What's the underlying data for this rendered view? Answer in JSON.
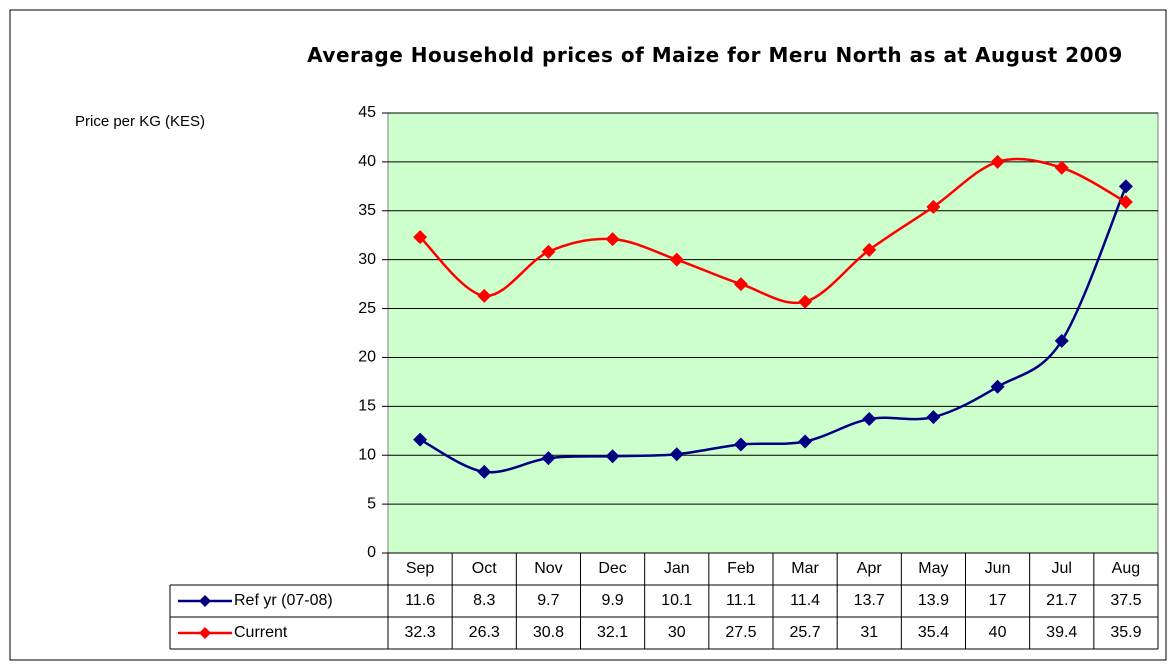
{
  "chart_data": {
    "type": "line",
    "title": "Average Household prices of Maize for Meru North as at August 2009",
    "y_axis_label": "Price per KG (KES)",
    "categories": [
      "Sep",
      "Oct",
      "Nov",
      "Dec",
      "Jan",
      "Feb",
      "Mar",
      "Apr",
      "May",
      "Jun",
      "Jul",
      "Aug"
    ],
    "series": [
      {
        "name": "Ref yr (07-08)",
        "color": "#000080",
        "values": [
          11.6,
          8.3,
          9.7,
          9.9,
          10.1,
          11.1,
          11.4,
          13.7,
          13.9,
          17,
          21.7,
          37.5
        ]
      },
      {
        "name": "Current",
        "color": "#ff0000",
        "values": [
          32.3,
          26.3,
          30.8,
          32.1,
          30,
          27.5,
          25.7,
          31,
          35.4,
          40,
          39.4,
          35.9
        ]
      }
    ],
    "ylim": [
      0,
      45
    ],
    "yticks": [
      0,
      5,
      10,
      15,
      20,
      25,
      30,
      35,
      40,
      45
    ],
    "grid": true,
    "plot_background": "#ccffcc"
  }
}
